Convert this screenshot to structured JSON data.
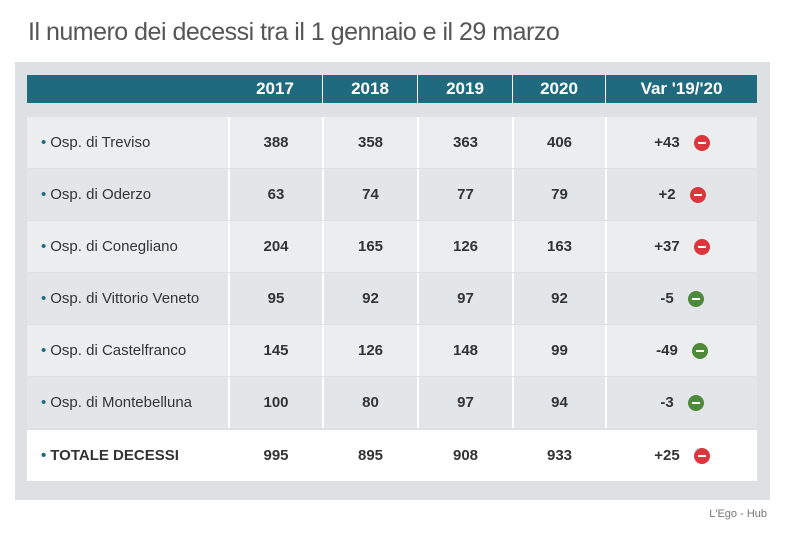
{
  "title": "Il numero dei decessi tra il 1 gennaio e il 29 marzo",
  "table": {
    "header": [
      "2017",
      "2018",
      "2019",
      "2020",
      "Var '19/'20"
    ],
    "rows": [
      {
        "label": "Osp. di Treviso",
        "values": [
          388,
          358,
          363,
          406
        ],
        "var": "+43",
        "icon_color": "#d9363e"
      },
      {
        "label": "Osp. di Oderzo",
        "values": [
          63,
          74,
          77,
          79
        ],
        "var": "+2",
        "icon_color": "#d9363e"
      },
      {
        "label": "Osp. di Conegliano",
        "values": [
          204,
          165,
          126,
          163
        ],
        "var": "+37",
        "icon_color": "#d9363e"
      },
      {
        "label": "Osp. di Vittorio Veneto",
        "values": [
          95,
          92,
          97,
          92
        ],
        "var": "-5",
        "icon_color": "#4f8a3a"
      },
      {
        "label": "Osp. di Castelfranco",
        "values": [
          145,
          126,
          148,
          99
        ],
        "var": "-49",
        "icon_color": "#4f8a3a"
      },
      {
        "label": "Osp. di Montebelluna",
        "values": [
          100,
          80,
          97,
          94
        ],
        "var": "-3",
        "icon_color": "#4f8a3a"
      }
    ],
    "total": {
      "label": "TOTALE DECESSI",
      "values": [
        995,
        895,
        908,
        933
      ],
      "var": "+25",
      "icon_color": "#d9363e"
    }
  },
  "source": "L'Ego - Hub"
}
